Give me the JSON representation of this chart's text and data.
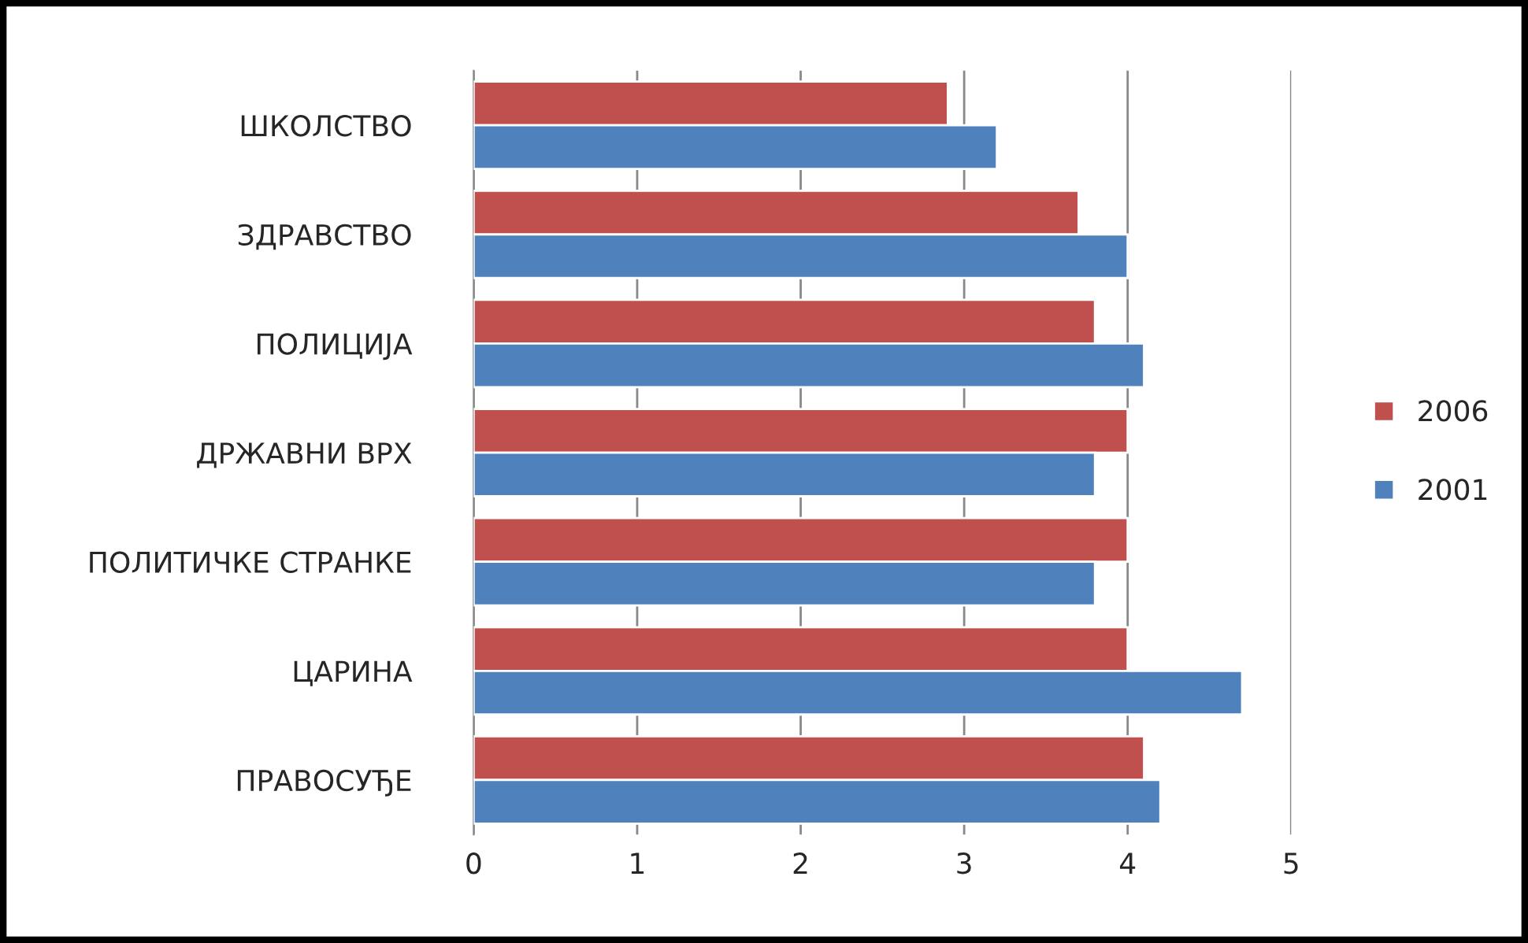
{
  "chart_data": {
    "type": "bar",
    "orientation": "horizontal",
    "categories": [
      "ШКОЛСТВО",
      "ЗДРАВСТВО",
      "ПОЛИЦИЈА",
      "ДРЖАВНИ ВРХ",
      "ПОЛИТИЧКЕ СТРАНКЕ",
      "ЦАРИНА",
      "ПРАВОСУЂЕ"
    ],
    "series": [
      {
        "name": "2006",
        "color": "#c0504d",
        "values": [
          2.9,
          3.7,
          3.8,
          4.0,
          4.0,
          4.0,
          4.1
        ]
      },
      {
        "name": "2001",
        "color": "#4f81bd",
        "values": [
          3.2,
          4.0,
          4.1,
          3.8,
          3.8,
          4.7,
          4.2
        ]
      }
    ],
    "xlim": [
      0,
      5
    ],
    "xticks": [
      0,
      1,
      2,
      3,
      4,
      5
    ],
    "grid": "x",
    "legend": "right"
  }
}
